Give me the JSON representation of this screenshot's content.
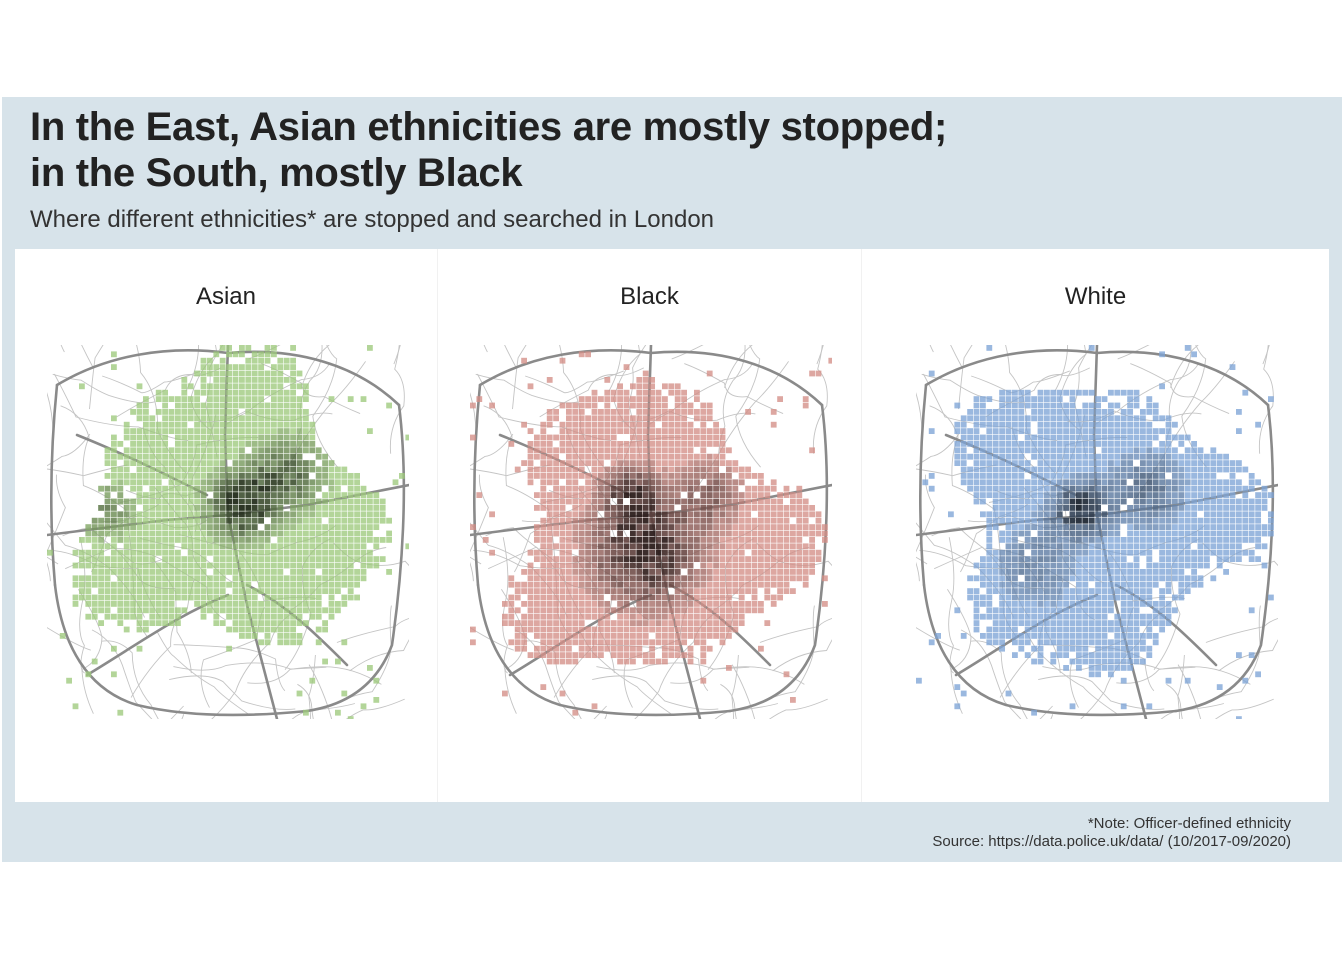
{
  "title_lines": [
    "In the East, Asian ethnicities are mostly stopped;",
    "in the South, mostly Black"
  ],
  "subtitle": "Where different ethnicities* are stopped and searched in London",
  "facets": [
    {
      "name": "Asian",
      "color": "#9dc97c",
      "hotspot": "east"
    },
    {
      "name": "Black",
      "color": "#d38e86",
      "hotspot": "south"
    },
    {
      "name": "White",
      "color": "#7ea4d6",
      "hotspot": "centre"
    }
  ],
  "road_colors": {
    "major": "#8a8a8a",
    "minor": "#c4c4c4"
  },
  "density_color": "#000000",
  "footer": {
    "note": "*Note: Officer-defined ethnicity",
    "source": "Source: https://data.police.uk/data/ (10/2017-09/2020)"
  }
}
